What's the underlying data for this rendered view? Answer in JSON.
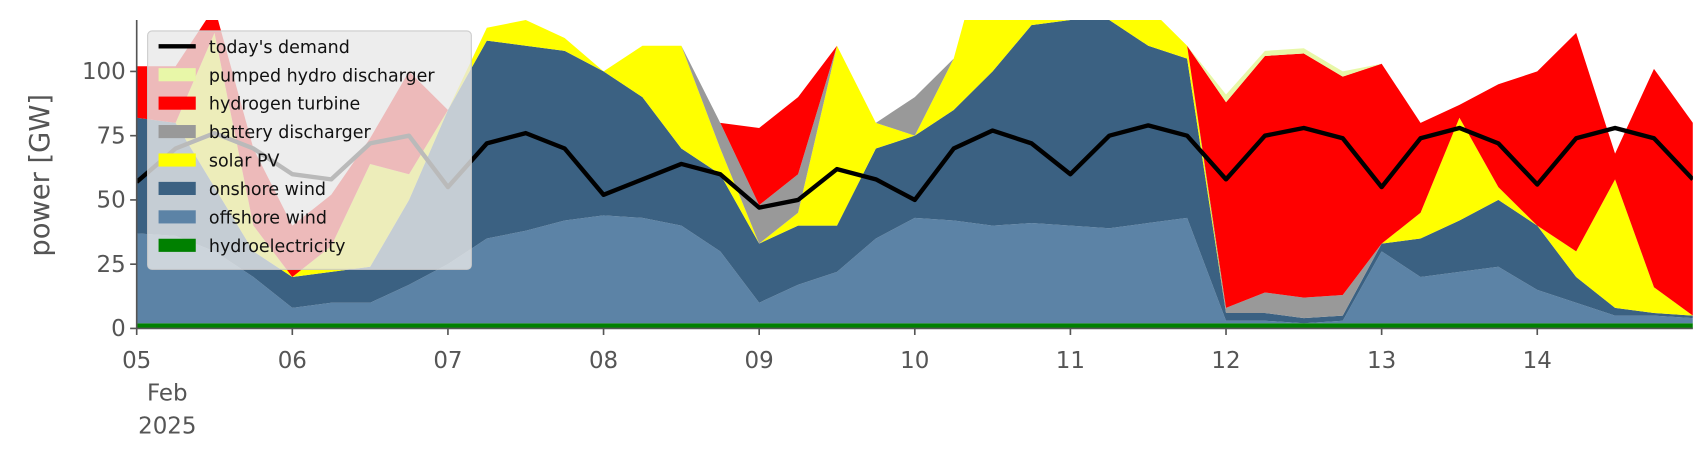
{
  "chart_data": {
    "type": "area",
    "ylabel": "power [GW]",
    "xtick_month": "Feb",
    "xtick_year": "2025",
    "x": [
      5,
      5.25,
      5.5,
      5.75,
      6,
      6.25,
      6.5,
      6.75,
      7,
      7.25,
      7.5,
      7.75,
      8,
      8.25,
      8.5,
      8.75,
      9,
      9.25,
      9.5,
      9.75,
      10,
      10.25,
      10.5,
      10.75,
      11,
      11.25,
      11.5,
      11.75,
      12,
      12.25,
      12.5,
      12.75,
      13,
      13.25,
      13.5,
      13.75,
      14,
      14.25,
      14.5,
      14.75,
      15
    ],
    "xlim": [
      5,
      15
    ],
    "xticks": [
      {
        "value": 5,
        "label": "05"
      },
      {
        "value": 6,
        "label": "06"
      },
      {
        "value": 7,
        "label": "07"
      },
      {
        "value": 8,
        "label": "08"
      },
      {
        "value": 9,
        "label": "09"
      },
      {
        "value": 10,
        "label": "10"
      },
      {
        "value": 11,
        "label": "11"
      },
      {
        "value": 12,
        "label": "12"
      },
      {
        "value": 13,
        "label": "13"
      },
      {
        "value": 14,
        "label": "14"
      }
    ],
    "ylim": [
      0,
      120
    ],
    "yticks": [
      0,
      25,
      50,
      75,
      100
    ],
    "legend": "upper left",
    "series": [
      {
        "name": "today's demand",
        "color": "#000000",
        "type": "line",
        "values": [
          57,
          70,
          76,
          70,
          60,
          58,
          72,
          75,
          55,
          72,
          76,
          70,
          52,
          58,
          64,
          60,
          47,
          50,
          62,
          58,
          50,
          70,
          77,
          72,
          60,
          75,
          79,
          75,
          58,
          75,
          78,
          74,
          55,
          74,
          78,
          72,
          56,
          74,
          78,
          74,
          58
        ]
      },
      {
        "name": "pumped hydro discharger",
        "color": "#e8f7a8",
        "values": [
          0,
          0,
          0,
          0,
          0,
          0,
          0,
          0,
          0,
          0,
          0,
          0,
          0,
          0,
          0,
          0,
          0,
          0,
          0,
          0,
          0,
          0,
          0,
          0,
          0,
          0,
          0,
          0,
          3,
          2,
          2,
          2,
          0,
          0,
          0,
          0,
          0,
          0,
          0,
          0,
          0
        ]
      },
      {
        "name": "hydrogen turbine",
        "color": "#ff0000",
        "values": [
          20,
          22,
          10,
          30,
          20,
          20,
          10,
          40,
          0,
          0,
          0,
          0,
          0,
          0,
          0,
          0,
          30,
          30,
          0,
          0,
          0,
          0,
          0,
          0,
          0,
          0,
          0,
          0,
          80,
          92,
          95,
          85,
          70,
          35,
          5,
          40,
          60,
          85,
          10,
          85,
          75
        ]
      },
      {
        "name": "battery discharger",
        "color": "#999999",
        "values": [
          0,
          0,
          0,
          0,
          0,
          0,
          0,
          0,
          0,
          0,
          0,
          0,
          0,
          0,
          0,
          10,
          15,
          15,
          0,
          0,
          15,
          0,
          0,
          0,
          0,
          0,
          0,
          0,
          2,
          8,
          8,
          8,
          0,
          0,
          0,
          0,
          0,
          0,
          0,
          0,
          0
        ]
      },
      {
        "name": "solar PV",
        "color": "#ffff00",
        "values": [
          0,
          0,
          60,
          10,
          0,
          10,
          40,
          10,
          0,
          5,
          10,
          5,
          0,
          20,
          40,
          10,
          0,
          5,
          70,
          10,
          0,
          20,
          60,
          10,
          0,
          5,
          15,
          5,
          0,
          0,
          0,
          0,
          0,
          10,
          40,
          5,
          0,
          10,
          50,
          10,
          0
        ]
      },
      {
        "name": "onshore wind",
        "color": "#3b6182",
        "values": [
          45,
          44,
          25,
          10,
          12,
          12,
          14,
          33,
          60,
          77,
          72,
          66,
          56,
          47,
          30,
          30,
          23,
          23,
          18,
          35,
          32,
          43,
          60,
          77,
          80,
          81,
          69,
          62,
          3,
          3,
          2,
          2,
          3,
          15,
          20,
          26,
          25,
          10,
          3,
          1,
          1
        ]
      },
      {
        "name": "offshore wind",
        "color": "#5c83a6",
        "values": [
          35,
          34,
          28,
          18,
          6,
          8,
          8,
          15,
          23,
          33,
          36,
          40,
          42,
          41,
          38,
          28,
          8,
          15,
          20,
          33,
          41,
          40,
          38,
          39,
          38,
          37,
          39,
          41,
          1,
          1,
          0,
          1,
          28,
          18,
          20,
          22,
          13,
          8,
          3,
          3,
          2
        ]
      },
      {
        "name": "hydroelectricity",
        "color": "#008000",
        "values": [
          2,
          2,
          2,
          2,
          2,
          2,
          2,
          2,
          2,
          2,
          2,
          2,
          2,
          2,
          2,
          2,
          2,
          2,
          2,
          2,
          2,
          2,
          2,
          2,
          2,
          2,
          2,
          2,
          2,
          2,
          2,
          2,
          2,
          2,
          2,
          2,
          2,
          2,
          2,
          2,
          2
        ]
      }
    ]
  }
}
